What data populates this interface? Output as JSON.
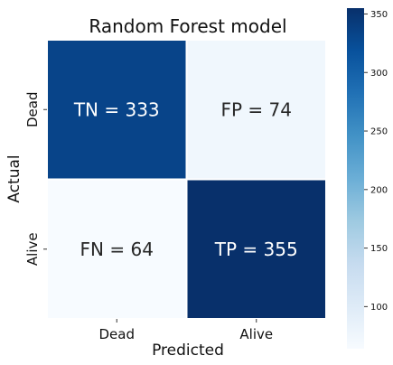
{
  "chart_data": {
    "type": "heatmap",
    "title": "Random Forest model",
    "xlabel": "Predicted",
    "ylabel": "Actual",
    "x_categories": [
      "Dead",
      "Alive"
    ],
    "y_categories": [
      "Dead",
      "Alive"
    ],
    "cells": [
      {
        "row": 0,
        "col": 0,
        "label": "TN = 333",
        "value": 333
      },
      {
        "row": 0,
        "col": 1,
        "label": "FP = 74",
        "value": 74
      },
      {
        "row": 1,
        "col": 0,
        "label": "FN = 64",
        "value": 64
      },
      {
        "row": 1,
        "col": 1,
        "label": "TP = 355",
        "value": 355
      }
    ],
    "colorbar": {
      "colormap": "Blues",
      "min": 64,
      "max": 355,
      "ticks": [
        100,
        150,
        200,
        250,
        300,
        350
      ]
    }
  }
}
